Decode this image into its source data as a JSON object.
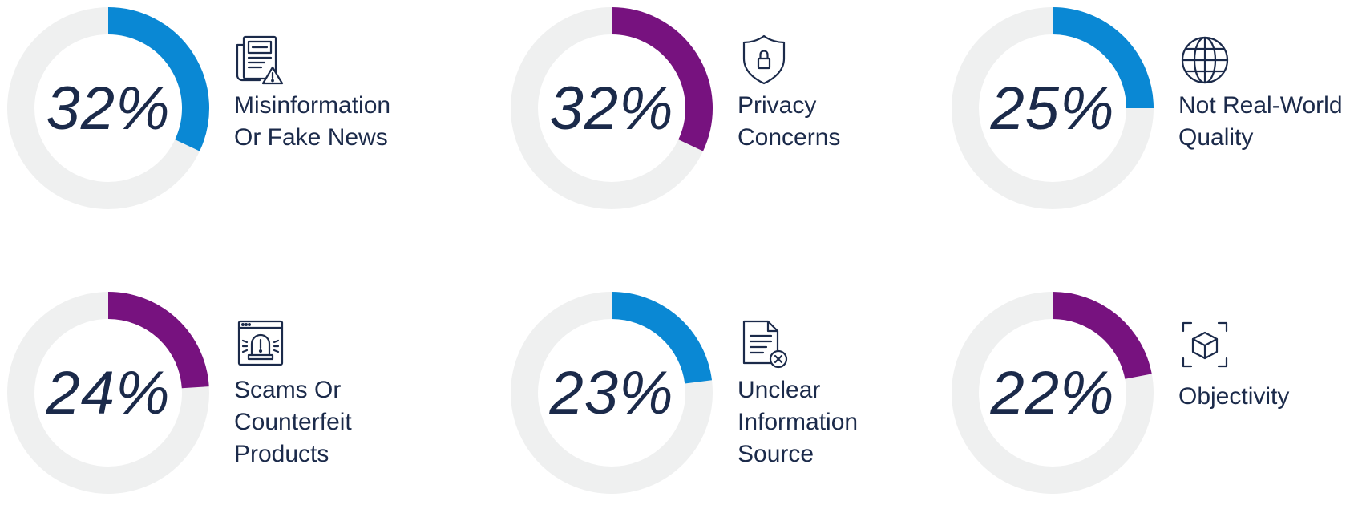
{
  "colors": {
    "track": "#eff0f0",
    "blue": "#0a88d4",
    "purple": "#77127f",
    "text": "#1b2a4a"
  },
  "chart_data": {
    "type": "donut",
    "items": [
      {
        "value": 32,
        "display": "32%",
        "label_lines": [
          "Misinformation",
          "Or Fake News"
        ],
        "color": "#0a88d4",
        "icon": "newspaper-warning-icon"
      },
      {
        "value": 32,
        "display": "32%",
        "label_lines": [
          "Privacy",
          "Concerns"
        ],
        "color": "#77127f",
        "icon": "shield-lock-icon"
      },
      {
        "value": 25,
        "display": "25%",
        "label_lines": [
          "Not Real-World",
          "Quality"
        ],
        "color": "#0a88d4",
        "icon": "globe-icon"
      },
      {
        "value": 24,
        "display": "24%",
        "label_lines": [
          "Scams Or",
          "Counterfeit",
          "Products"
        ],
        "color": "#77127f",
        "icon": "alarm-browser-icon"
      },
      {
        "value": 23,
        "display": "23%",
        "label_lines": [
          "Unclear",
          "Information",
          "Source"
        ],
        "color": "#0a88d4",
        "icon": "document-x-icon"
      },
      {
        "value": 22,
        "display": "22%",
        "label_lines": [
          "Objectivity"
        ],
        "color": "#77127f",
        "icon": "cube-scan-icon"
      }
    ]
  }
}
